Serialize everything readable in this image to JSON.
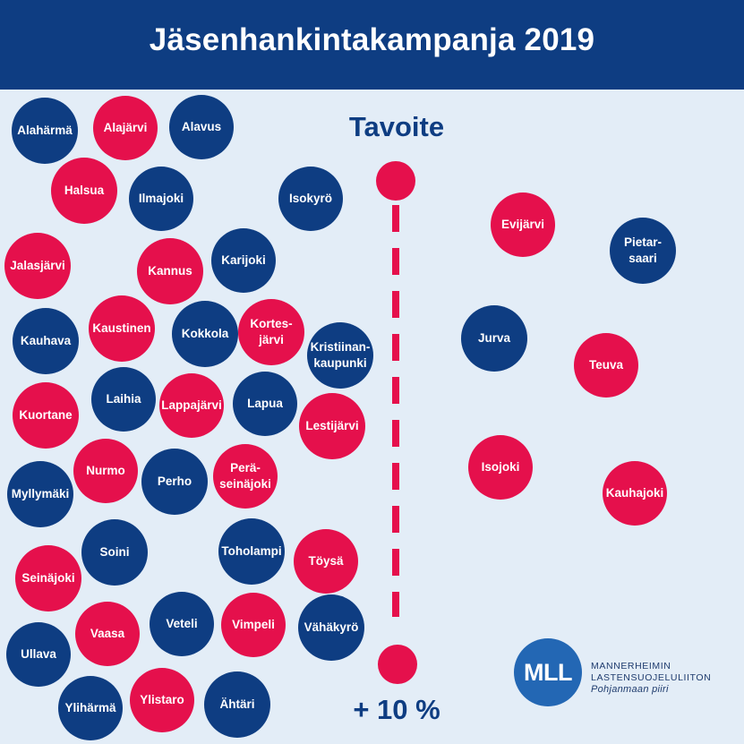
{
  "title": "Jäsenhankintakampanja 2019",
  "goal": {
    "title": "Tavoite",
    "percent": "+ 10 %"
  },
  "logo": {
    "abbreviation": "MLL",
    "line1": "MANNERHEIMIN",
    "line2": "LASTENSUOJELULIITON",
    "line3": "Pohjanmaan piiri"
  },
  "colors": {
    "navy": "#0e3d82",
    "red": "#e5104c",
    "background": "#e3edf7",
    "logo_blue": "#2367b4"
  },
  "municipalities": [
    {
      "name": "Alahärmä",
      "color": "navy",
      "side": "left"
    },
    {
      "name": "Alajärvi",
      "color": "red",
      "side": "left"
    },
    {
      "name": "Alavus",
      "color": "navy",
      "side": "left"
    },
    {
      "name": "Halsua",
      "color": "red",
      "side": "left"
    },
    {
      "name": "Ilmajoki",
      "color": "navy",
      "side": "left"
    },
    {
      "name": "Isokyrö",
      "color": "navy",
      "side": "left"
    },
    {
      "name": "Jalasjärvi",
      "color": "red",
      "side": "left"
    },
    {
      "name": "Kannus",
      "color": "red",
      "side": "left"
    },
    {
      "name": "Karijoki",
      "color": "navy",
      "side": "left"
    },
    {
      "name": "Kauhava",
      "color": "navy",
      "side": "left"
    },
    {
      "name": "Kaustinen",
      "color": "red",
      "side": "left"
    },
    {
      "name": "Kokkola",
      "color": "navy",
      "side": "left"
    },
    {
      "name": "Kortes-\njärvi",
      "color": "red",
      "side": "left"
    },
    {
      "name": "Kristiinan-\nkaupunki",
      "color": "navy",
      "side": "left"
    },
    {
      "name": "Kuortane",
      "color": "red",
      "side": "left"
    },
    {
      "name": "Laihia",
      "color": "navy",
      "side": "left"
    },
    {
      "name": "Lappajärvi",
      "color": "red",
      "side": "left"
    },
    {
      "name": "Lapua",
      "color": "navy",
      "side": "left"
    },
    {
      "name": "Lestijärvi",
      "color": "red",
      "side": "left"
    },
    {
      "name": "Myllymäki",
      "color": "navy",
      "side": "left"
    },
    {
      "name": "Nurmo",
      "color": "red",
      "side": "left"
    },
    {
      "name": "Perho",
      "color": "navy",
      "side": "left"
    },
    {
      "name": "Perä-\nseinäjoki",
      "color": "red",
      "side": "left"
    },
    {
      "name": "Seinäjoki",
      "color": "red",
      "side": "left"
    },
    {
      "name": "Soini",
      "color": "navy",
      "side": "left"
    },
    {
      "name": "Toholampi",
      "color": "navy",
      "side": "left"
    },
    {
      "name": "Töysä",
      "color": "red",
      "side": "left"
    },
    {
      "name": "Ullava",
      "color": "navy",
      "side": "left"
    },
    {
      "name": "Vaasa",
      "color": "red",
      "side": "left"
    },
    {
      "name": "Veteli",
      "color": "navy",
      "side": "left"
    },
    {
      "name": "Vimpeli",
      "color": "red",
      "side": "left"
    },
    {
      "name": "Vähäkyrö",
      "color": "navy",
      "side": "left"
    },
    {
      "name": "Ylihärmä",
      "color": "navy",
      "side": "left"
    },
    {
      "name": "Ylistaro",
      "color": "red",
      "side": "left"
    },
    {
      "name": "Ähtäri",
      "color": "navy",
      "side": "left"
    },
    {
      "name": "Evijärvi",
      "color": "red",
      "side": "right"
    },
    {
      "name": "Pietar-\nsaari",
      "color": "navy",
      "side": "right"
    },
    {
      "name": "Jurva",
      "color": "navy",
      "side": "right"
    },
    {
      "name": "Teuva",
      "color": "red",
      "side": "right"
    },
    {
      "name": "Isojoki",
      "color": "red",
      "side": "right"
    },
    {
      "name": "Kauhajoki",
      "color": "red",
      "side": "right"
    }
  ]
}
